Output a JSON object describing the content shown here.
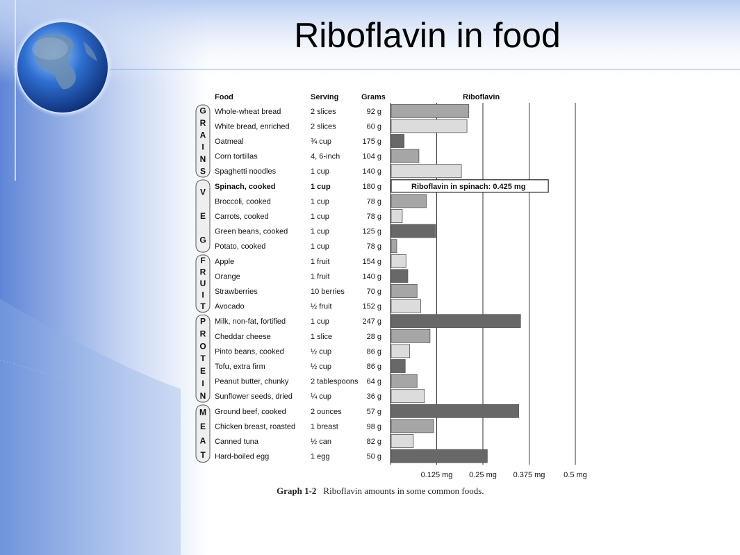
{
  "slide": {
    "title": "Riboflavin in food",
    "colors": {
      "background_blue": "#5f86d6",
      "globe_blue": "#1f5bb5"
    }
  },
  "caption": {
    "label": "Graph 1-2",
    "text": "Riboflavin amounts in some common foods."
  },
  "chart_data": {
    "type": "bar",
    "orientation": "horizontal",
    "columns": {
      "food": "Food",
      "serving": "Serving",
      "grams": "Grams",
      "value": "Riboflavin"
    },
    "xlim": [
      0,
      0.5
    ],
    "unit": "mg",
    "grid": true,
    "xticks": [
      "0.125 mg",
      "0.25 mg",
      "0.375 mg",
      "0.5 mg"
    ],
    "xtick_values": [
      0.125,
      0.25,
      0.375,
      0.5
    ],
    "groups": [
      {
        "letters": [
          "G",
          "R",
          "A",
          "I",
          "N",
          "S"
        ],
        "start": 0,
        "end": 4
      },
      {
        "letters": [
          "V",
          "E",
          "G"
        ],
        "start": 5,
        "end": 9
      },
      {
        "letters": [
          "F",
          "R",
          "U",
          "I",
          "T"
        ],
        "start": 10,
        "end": 13
      },
      {
        "letters": [
          "P",
          "R",
          "O",
          "T",
          "E",
          "I",
          "N"
        ],
        "start": 14,
        "end": 19
      },
      {
        "letters": [
          "M",
          "E",
          "A",
          "T"
        ],
        "start": 20,
        "end": 23
      }
    ],
    "annotation": {
      "row": 5,
      "text": "Riboflavin in spinach: 0.425 mg"
    },
    "rows": [
      {
        "food": "Whole-wheat bread",
        "serving": "2 slices",
        "grams": "92 g",
        "value": 0.21,
        "shade": "#a6a6a6"
      },
      {
        "food": "White bread, enriched",
        "serving": "2 slices",
        "grams": "60 g",
        "value": 0.205,
        "shade": "#dcdcdc"
      },
      {
        "food": "Oatmeal",
        "serving": "¾ cup",
        "grams": "175 g",
        "value": 0.035,
        "shade": "#686868"
      },
      {
        "food": "Corn tortillas",
        "serving": "4, 6-inch",
        "grams": "104 g",
        "value": 0.075,
        "shade": "#a6a6a6"
      },
      {
        "food": "Spaghetti noodles",
        "serving": "1 cup",
        "grams": "140 g",
        "value": 0.19,
        "shade": "#dcdcdc"
      },
      {
        "food": "Spinach, cooked",
        "serving": "1 cup",
        "grams": "180 g",
        "value": 0.425,
        "shade": "#ffffff",
        "bold": true
      },
      {
        "food": "Broccoli, cooked",
        "serving": "1 cup",
        "grams": "78 g",
        "value": 0.095,
        "shade": "#a6a6a6"
      },
      {
        "food": "Carrots, cooked",
        "serving": "1 cup",
        "grams": "78 g",
        "value": 0.03,
        "shade": "#dcdcdc"
      },
      {
        "food": "Green beans, cooked",
        "serving": "1 cup",
        "grams": "125 g",
        "value": 0.12,
        "shade": "#686868"
      },
      {
        "food": "Potato, cooked",
        "serving": "1 cup",
        "grams": "78 g",
        "value": 0.015,
        "shade": "#a6a6a6"
      },
      {
        "food": "Apple",
        "serving": "1 fruit",
        "grams": "154 g",
        "value": 0.04,
        "shade": "#dcdcdc"
      },
      {
        "food": "Orange",
        "serving": "1 fruit",
        "grams": "140 g",
        "value": 0.045,
        "shade": "#686868"
      },
      {
        "food": "Strawberries",
        "serving": "10 berries",
        "grams": "70 g",
        "value": 0.07,
        "shade": "#a6a6a6"
      },
      {
        "food": "Avocado",
        "serving": "½ fruit",
        "grams": "152 g",
        "value": 0.08,
        "shade": "#dcdcdc"
      },
      {
        "food": "Milk, non-fat, fortified",
        "serving": "1 cup",
        "grams": "247 g",
        "value": 0.35,
        "shade": "#686868"
      },
      {
        "food": "Cheddar cheese",
        "serving": "1 slice",
        "grams": "28 g",
        "value": 0.105,
        "shade": "#a6a6a6"
      },
      {
        "food": "Pinto beans, cooked",
        "serving": "½ cup",
        "grams": "86 g",
        "value": 0.05,
        "shade": "#dcdcdc"
      },
      {
        "food": "Tofu, extra firm",
        "serving": "½ cup",
        "grams": "86 g",
        "value": 0.038,
        "shade": "#686868"
      },
      {
        "food": "Peanut butter, chunky",
        "serving": "2 tablespoons",
        "grams": "64 g",
        "value": 0.07,
        "shade": "#a6a6a6"
      },
      {
        "food": "Sunflower seeds, dried",
        "serving": "¼ cup",
        "grams": "36 g",
        "value": 0.09,
        "shade": "#dcdcdc"
      },
      {
        "food": "Ground beef, cooked",
        "serving": "2 ounces",
        "grams": "57 g",
        "value": 0.345,
        "shade": "#686868"
      },
      {
        "food": "Chicken breast, roasted",
        "serving": "1 breast",
        "grams": "98 g",
        "value": 0.115,
        "shade": "#a6a6a6"
      },
      {
        "food": "Canned tuna",
        "serving": "½ can",
        "grams": "82 g",
        "value": 0.06,
        "shade": "#dcdcdc"
      },
      {
        "food": "Hard-boiled egg",
        "serving": "1 egg",
        "grams": "50 g",
        "value": 0.26,
        "shade": "#686868"
      }
    ]
  }
}
